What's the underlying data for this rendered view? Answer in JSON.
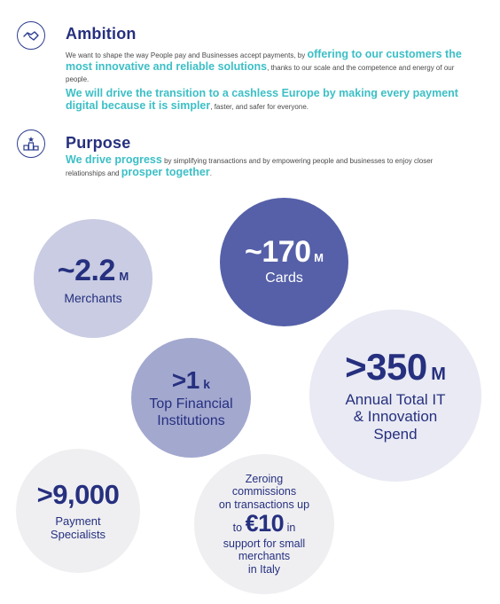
{
  "ambition": {
    "title": "Ambition",
    "icon": "handshake-icon",
    "p1_a": "We want to shape the way People pay and Businesses accept payments, by ",
    "p1_hl": "offering to our customers the most innovative and reliable solutions",
    "p1_b": ", thanks to our scale and the competence and energy of our people.",
    "p2_hl": "We will drive the transition to a cashless Europe by making every payment digital because it is simpler",
    "p2_b": ", faster, and safer for everyone."
  },
  "purpose": {
    "title": "Purpose",
    "icon": "podium-icon",
    "p_hl1": "We drive progress",
    "p_a": " by simplifying transactions and by empowering people and businesses to enjoy closer relationships and ",
    "p_hl2": "prosper together",
    "p_b": "."
  },
  "stats": {
    "merchants": {
      "value": "~2.2",
      "unit": "M",
      "label": "Merchants"
    },
    "cards": {
      "value": "~170",
      "unit": "M",
      "label": "Cards"
    },
    "institutions": {
      "value": ">1",
      "unit": "k",
      "label_1": "Top Financial",
      "label_2": "Institutions"
    },
    "spend": {
      "value": ">350",
      "unit": "M",
      "label_1": "Annual Total IT",
      "label_2": "& Innovation",
      "label_3": "Spend"
    },
    "specialists": {
      "value": ">9,000",
      "label_1": "Payment",
      "label_2": "Specialists"
    },
    "commissions": {
      "line_1": "Zeroing",
      "line_2": "commissions",
      "line_3": "on transactions up",
      "pre": "to ",
      "value": "€10",
      "post": " in",
      "line_5": "support for small",
      "line_6": "merchants",
      "line_7": "in Italy"
    }
  },
  "colors": {
    "navy": "#26307f",
    "teal": "#3cbfc6",
    "indigo_circle": "#5560a8",
    "lavender_circle": "#c9cce2",
    "periwinkle_circle": "#a3a8cf",
    "pale_circle": "#e9eaf3",
    "grey_circle": "#efeff2"
  }
}
